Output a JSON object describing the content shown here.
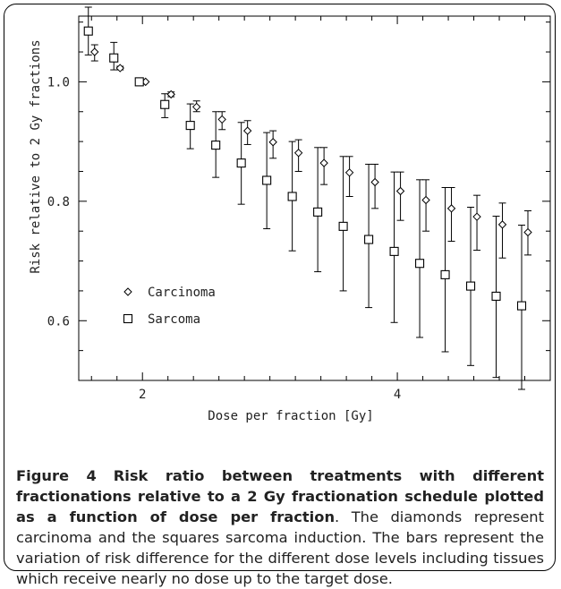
{
  "chart_data": {
    "type": "scatter",
    "xlabel": "Dose per fraction [Gy]",
    "ylabel": "Risk relative to 2 Gy fractions",
    "xlim": [
      1.5,
      5.2
    ],
    "ylim": [
      0.5,
      1.11
    ],
    "x_ticks": [
      2,
      4
    ],
    "y_ticks": [
      0.6,
      0.8,
      1.0
    ],
    "y_tick_labels": [
      "0.6",
      "0.8",
      "1.0"
    ],
    "grid": false,
    "legend_position": "bottom-left",
    "series": [
      {
        "name": "Carcinoma",
        "marker": "diamond",
        "points": [
          {
            "x": 1.6,
            "y": 1.05,
            "lo": 1.035,
            "hi": 1.062
          },
          {
            "x": 1.8,
            "y": 1.023,
            "lo": 1.02,
            "hi": 1.026
          },
          {
            "x": 2.0,
            "y": 1.0,
            "lo": 1.0,
            "hi": 1.0
          },
          {
            "x": 2.2,
            "y": 0.979,
            "lo": 0.975,
            "hi": 0.983
          },
          {
            "x": 2.4,
            "y": 0.958,
            "lo": 0.95,
            "hi": 0.968
          },
          {
            "x": 2.6,
            "y": 0.937,
            "lo": 0.92,
            "hi": 0.95
          },
          {
            "x": 2.8,
            "y": 0.918,
            "lo": 0.895,
            "hi": 0.935
          },
          {
            "x": 3.0,
            "y": 0.899,
            "lo": 0.872,
            "hi": 0.918
          },
          {
            "x": 3.2,
            "y": 0.881,
            "lo": 0.85,
            "hi": 0.903
          },
          {
            "x": 3.4,
            "y": 0.864,
            "lo": 0.828,
            "hi": 0.89
          },
          {
            "x": 3.6,
            "y": 0.848,
            "lo": 0.808,
            "hi": 0.875
          },
          {
            "x": 3.8,
            "y": 0.832,
            "lo": 0.788,
            "hi": 0.862
          },
          {
            "x": 4.0,
            "y": 0.817,
            "lo": 0.768,
            "hi": 0.849
          },
          {
            "x": 4.2,
            "y": 0.802,
            "lo": 0.75,
            "hi": 0.836
          },
          {
            "x": 4.4,
            "y": 0.788,
            "lo": 0.733,
            "hi": 0.823
          },
          {
            "x": 4.6,
            "y": 0.774,
            "lo": 0.718,
            "hi": 0.81
          },
          {
            "x": 4.8,
            "y": 0.761,
            "lo": 0.705,
            "hi": 0.797
          },
          {
            "x": 5.0,
            "y": 0.748,
            "lo": 0.71,
            "hi": 0.784
          }
        ]
      },
      {
        "name": "Sarcoma",
        "marker": "square",
        "points": [
          {
            "x": 1.6,
            "y": 1.085,
            "lo": 1.045,
            "hi": 1.125
          },
          {
            "x": 1.8,
            "y": 1.04,
            "lo": 1.02,
            "hi": 1.066
          },
          {
            "x": 2.0,
            "y": 1.0,
            "lo": 1.0,
            "hi": 1.0
          },
          {
            "x": 2.2,
            "y": 0.962,
            "lo": 0.94,
            "hi": 0.98
          },
          {
            "x": 2.4,
            "y": 0.927,
            "lo": 0.888,
            "hi": 0.963
          },
          {
            "x": 2.6,
            "y": 0.894,
            "lo": 0.84,
            "hi": 0.95
          },
          {
            "x": 2.8,
            "y": 0.864,
            "lo": 0.795,
            "hi": 0.932
          },
          {
            "x": 3.0,
            "y": 0.835,
            "lo": 0.754,
            "hi": 0.915
          },
          {
            "x": 3.2,
            "y": 0.808,
            "lo": 0.717,
            "hi": 0.9
          },
          {
            "x": 3.4,
            "y": 0.782,
            "lo": 0.682,
            "hi": 0.89
          },
          {
            "x": 3.6,
            "y": 0.758,
            "lo": 0.65,
            "hi": 0.875
          },
          {
            "x": 3.8,
            "y": 0.736,
            "lo": 0.622,
            "hi": 0.862
          },
          {
            "x": 4.0,
            "y": 0.716,
            "lo": 0.597,
            "hi": 0.849
          },
          {
            "x": 4.2,
            "y": 0.696,
            "lo": 0.572,
            "hi": 0.836
          },
          {
            "x": 4.4,
            "y": 0.677,
            "lo": 0.548,
            "hi": 0.823
          },
          {
            "x": 4.6,
            "y": 0.658,
            "lo": 0.525,
            "hi": 0.79
          },
          {
            "x": 4.8,
            "y": 0.641,
            "lo": 0.505,
            "hi": 0.775
          },
          {
            "x": 5.0,
            "y": 0.625,
            "lo": 0.485,
            "hi": 0.76
          }
        ]
      }
    ]
  },
  "caption": {
    "label": "Figure 4",
    "title": "Risk ratio between treatments with different fractionations relative to a 2 Gy fractionation schedule plotted as a function of dose per fraction",
    "body": ". The diamonds represent carcinoma and the squares sarcoma induction. The bars represent the variation of risk difference for the different dose levels including tissues which receive nearly no dose up to the target dose."
  }
}
